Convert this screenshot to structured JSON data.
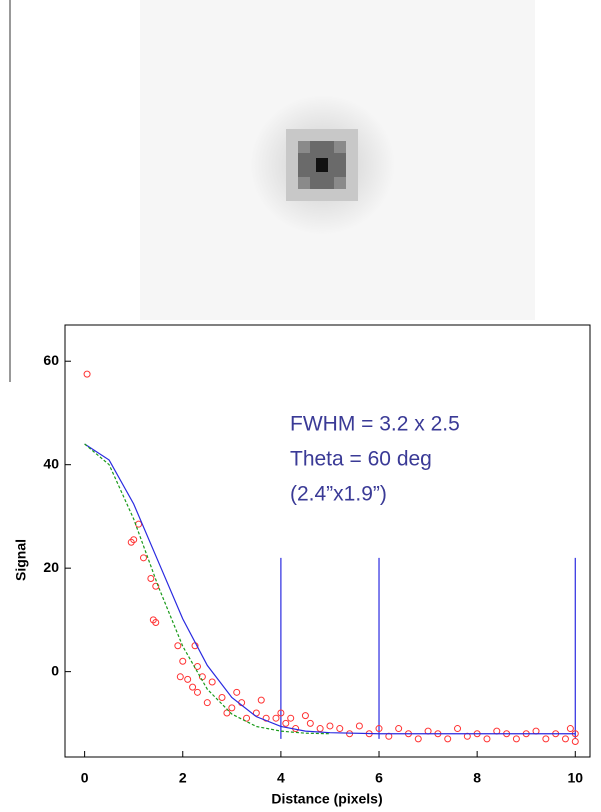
{
  "chart_data": {
    "type": "scatter",
    "xlabel": "Distance (pixels)",
    "ylabel": "Signal",
    "annotations": [
      "FWHM = 3.2 x 2.5",
      "Theta = 60 deg",
      "(2.4”x1.9”)"
    ],
    "annotation_color": "#3a3a96",
    "xlim": [
      -0.4,
      10.3
    ],
    "xticks": [
      0,
      2,
      4,
      6,
      8,
      10
    ],
    "ylim": [
      -16.5,
      67
    ],
    "yticks": [
      0,
      20,
      40,
      60
    ],
    "series": [
      {
        "type": "scatter",
        "color": "#ff3333",
        "x": [
          0.05,
          0.95,
          1.0,
          1.1,
          1.2,
          1.35,
          1.45,
          1.4,
          1.45,
          1.9,
          2.0,
          1.95,
          2.1,
          2.25,
          2.3,
          2.2,
          2.3,
          2.4,
          2.5,
          2.6,
          2.8,
          2.9,
          3.0,
          3.1,
          3.2,
          3.3,
          3.5,
          3.6,
          3.7,
          3.9,
          4.0,
          4.1,
          4.2,
          4.3,
          4.5,
          4.6,
          4.8,
          5.0,
          5.2,
          5.4,
          5.6,
          5.8,
          6.0,
          6.2,
          6.4,
          6.6,
          6.8,
          7.0,
          7.2,
          7.4,
          7.6,
          7.8,
          8.0,
          8.2,
          8.4,
          8.6,
          8.8,
          9.0,
          9.2,
          9.4,
          9.6,
          9.8,
          10.0,
          10.0,
          9.9
        ],
        "values": [
          57.5,
          25,
          25.5,
          28.5,
          22,
          18,
          16.5,
          10,
          9.5,
          5,
          2,
          -1,
          -1.5,
          5,
          1,
          -3,
          -4,
          -1,
          -6,
          -2,
          -5,
          -8,
          -7,
          -4,
          -6,
          -9,
          -8,
          -5.5,
          -9,
          -9,
          -8,
          -10,
          -9,
          -11,
          -8.5,
          -10,
          -11,
          -10.5,
          -11,
          -12,
          -10.5,
          -12,
          -11,
          -12.5,
          -11,
          -12,
          -13,
          -11.5,
          -12,
          -13,
          -11,
          -12.5,
          -12,
          -13,
          -11.5,
          -12,
          -13,
          -12,
          -11.5,
          -13,
          -12,
          -13,
          -12,
          -13.5,
          -11
        ]
      },
      {
        "type": "line",
        "color": "#2a2ae0",
        "dash": false,
        "x": [
          0,
          0.5,
          1,
          1.5,
          2,
          2.5,
          3,
          3.5,
          4,
          4.5,
          5,
          6,
          7,
          8,
          9,
          10
        ],
        "values": [
          44,
          40.9,
          32.4,
          21.3,
          10.2,
          1.2,
          -5.0,
          -8.7,
          -10.6,
          -11.5,
          -11.8,
          -12,
          -12,
          -12,
          -12,
          -12
        ]
      },
      {
        "type": "line",
        "color": "#1a9a1a",
        "dash": true,
        "x": [
          0,
          0.5,
          1,
          1.5,
          2,
          2.5,
          3,
          3.5,
          4,
          4.5,
          5
        ],
        "values": [
          44,
          40.0,
          29.5,
          16.5,
          4.9,
          -3.4,
          -8.2,
          -10.6,
          -11.5,
          -11.9,
          -12
        ]
      }
    ],
    "vlines": {
      "color": "#2a2ae0",
      "x": [
        4,
        6,
        10
      ],
      "ymin": -13,
      "ymax": 22
    }
  }
}
